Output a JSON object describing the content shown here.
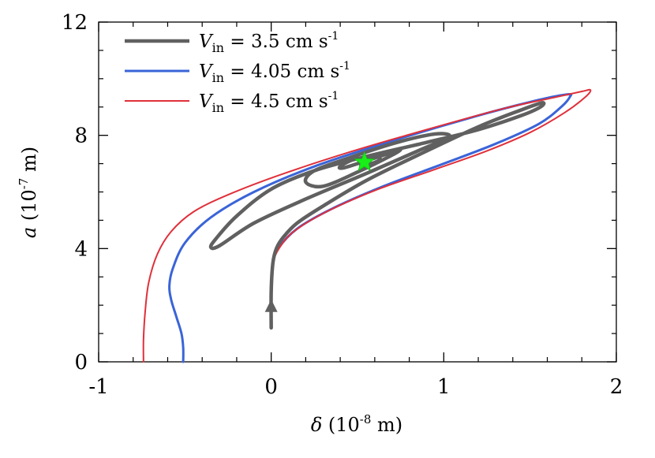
{
  "chart_data": {
    "type": "line",
    "xlabel": {
      "symbol": "δ",
      "prefix": " (10",
      "exp": "-8",
      "suffix": " m)"
    },
    "ylabel": {
      "symbol": "a",
      "prefix": " (10",
      "exp": "-7",
      "suffix": " m)"
    },
    "xlim": [
      -1,
      2
    ],
    "ylim": [
      0,
      12
    ],
    "xticks": [
      -1,
      0,
      1,
      2
    ],
    "yticks": [
      0,
      4,
      8,
      12
    ],
    "xtick_labels": [
      "-1",
      "0",
      "1",
      "2"
    ],
    "ytick_labels": [
      "0",
      "4",
      "8",
      "12"
    ],
    "grid": false,
    "legend_position": "top-left",
    "series": [
      {
        "name_var": "V",
        "name_sub": "in",
        "name_value": " = 3.5 cm s",
        "name_exp": "-1",
        "color": "#606060",
        "x": [
          0.0,
          0.0,
          0.01,
          0.03,
          0.07,
          0.15,
          0.3,
          0.55,
          0.85,
          1.2,
          1.45,
          1.57,
          1.56,
          1.45,
          1.2,
          0.9,
          0.55,
          0.25,
          0.0,
          -0.2,
          -0.32,
          -0.35,
          -0.3,
          -0.1,
          0.2,
          0.55,
          0.85,
          1.02,
          1.01,
          0.9,
          0.7,
          0.45,
          0.25,
          0.2,
          0.3,
          0.5,
          0.7,
          0.75,
          0.7,
          0.55,
          0.42,
          0.4,
          0.48,
          0.6,
          0.63,
          0.58,
          0.52,
          0.55
        ],
        "y": [
          1.2,
          2.5,
          3.5,
          4.0,
          4.4,
          4.9,
          5.5,
          6.4,
          7.3,
          8.3,
          8.9,
          9.15,
          9.0,
          8.7,
          8.2,
          7.75,
          7.25,
          6.75,
          6.1,
          5.15,
          4.35,
          4.05,
          4.1,
          4.9,
          5.75,
          6.65,
          7.45,
          7.9,
          8.05,
          8.0,
          7.7,
          7.2,
          6.75,
          6.35,
          6.2,
          6.7,
          7.3,
          7.5,
          7.4,
          7.1,
          6.85,
          6.9,
          7.15,
          7.25,
          7.15,
          7.0,
          6.95,
          7.05
        ]
      },
      {
        "name_var": "V",
        "name_sub": "in",
        "name_value": " = 4.05 cm s",
        "name_exp": "-1",
        "color": "#3a64d8",
        "x": [
          -0.51,
          -0.51,
          -0.52,
          -0.55,
          -0.58,
          -0.59,
          -0.57,
          -0.5,
          -0.35,
          -0.1,
          0.25,
          0.7,
          1.2,
          1.55,
          1.72,
          1.73,
          1.68,
          1.55,
          1.3,
          1.0,
          0.65,
          0.35,
          0.15,
          0.04,
          0.01,
          0.0,
          0.0
        ],
        "y": [
          0.0,
          0.5,
          1.0,
          1.6,
          2.2,
          2.7,
          3.3,
          4.2,
          5.1,
          6.0,
          6.9,
          7.8,
          8.7,
          9.25,
          9.45,
          9.35,
          9.0,
          8.4,
          7.7,
          7.0,
          6.2,
          5.4,
          4.7,
          4.0,
          3.5,
          2.5,
          1.2
        ]
      },
      {
        "name_var": "V",
        "name_sub": "in",
        "name_value": " = 4.5 cm s",
        "name_exp": "-1",
        "color": "#e0303a",
        "x": [
          -0.74,
          -0.74,
          -0.73,
          -0.71,
          -0.66,
          -0.58,
          -0.45,
          -0.25,
          0.05,
          0.45,
          0.9,
          1.35,
          1.65,
          1.8,
          1.85,
          1.82,
          1.7,
          1.5,
          1.25,
          0.95,
          0.6,
          0.32,
          0.13,
          0.04,
          0.01,
          0.0,
          0.0
        ],
        "y": [
          0.0,
          0.8,
          1.8,
          2.8,
          3.8,
          4.6,
          5.3,
          5.9,
          6.6,
          7.4,
          8.2,
          8.95,
          9.35,
          9.55,
          9.6,
          9.35,
          8.8,
          8.1,
          7.45,
          6.8,
          6.05,
          5.3,
          4.6,
          3.95,
          3.4,
          2.5,
          1.2
        ]
      }
    ],
    "markers": {
      "arrow_point": [
        0.0,
        1.9
      ],
      "star_point": [
        0.54,
        7.05
      ],
      "star_color": "#18ef18"
    }
  }
}
